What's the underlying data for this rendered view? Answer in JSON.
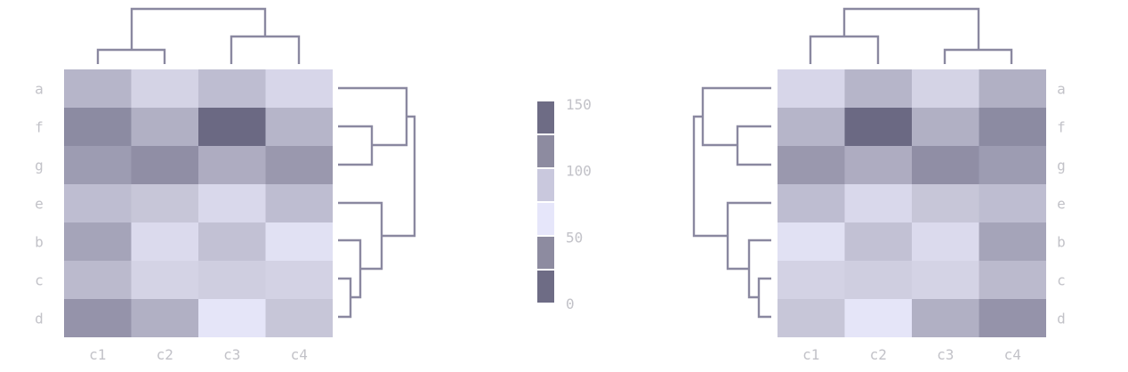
{
  "chart_data": [
    {
      "type": "heatmap",
      "name": "left",
      "rows": [
        "a",
        "f",
        "g",
        "e",
        "b",
        "c",
        "d"
      ],
      "columns": [
        "c1",
        "c2",
        "c3",
        "c4"
      ],
      "values": [
        [
          95,
          75,
          90,
          72
        ],
        [
          120,
          98,
          140,
          95
        ],
        [
          110,
          118,
          100,
          112
        ],
        [
          90,
          85,
          70,
          90
        ],
        [
          105,
          68,
          88,
          62
        ],
        [
          92,
          75,
          80,
          76
        ],
        [
          115,
          98,
          58,
          85
        ]
      ],
      "col_dendrogram_side": "top",
      "row_dendrogram_side": "right"
    },
    {
      "type": "heatmap",
      "name": "right",
      "rows": [
        "a",
        "f",
        "g",
        "e",
        "b",
        "c",
        "d"
      ],
      "columns": [
        "c1",
        "c2",
        "c3",
        "c4"
      ],
      "values": [
        [
          72,
          95,
          75,
          98
        ],
        [
          95,
          140,
          98,
          120
        ],
        [
          112,
          100,
          118,
          110
        ],
        [
          90,
          70,
          85,
          90
        ],
        [
          62,
          88,
          68,
          105
        ],
        [
          76,
          80,
          75,
          92
        ],
        [
          85,
          58,
          98,
          115
        ]
      ],
      "col_dendrogram_side": "top",
      "row_dendrogram_side": "left"
    }
  ],
  "colorbar": {
    "ticks": [
      "150",
      "100",
      "50",
      "0"
    ],
    "tick_values": [
      150,
      100,
      50,
      0
    ],
    "range": [
      0,
      150
    ],
    "segment_colors": [
      "#6e6c85",
      "#8d8ba0",
      "#c9c8dd",
      "#e6e6fa",
      "#8d8ba0",
      "#6e6c85"
    ]
  },
  "colors": {
    "low": "#e8e8fb",
    "mid": "#cfcee0",
    "high": "#6b6983",
    "dendrogram": "#8a88a0",
    "labels": "#c2c2c8"
  }
}
